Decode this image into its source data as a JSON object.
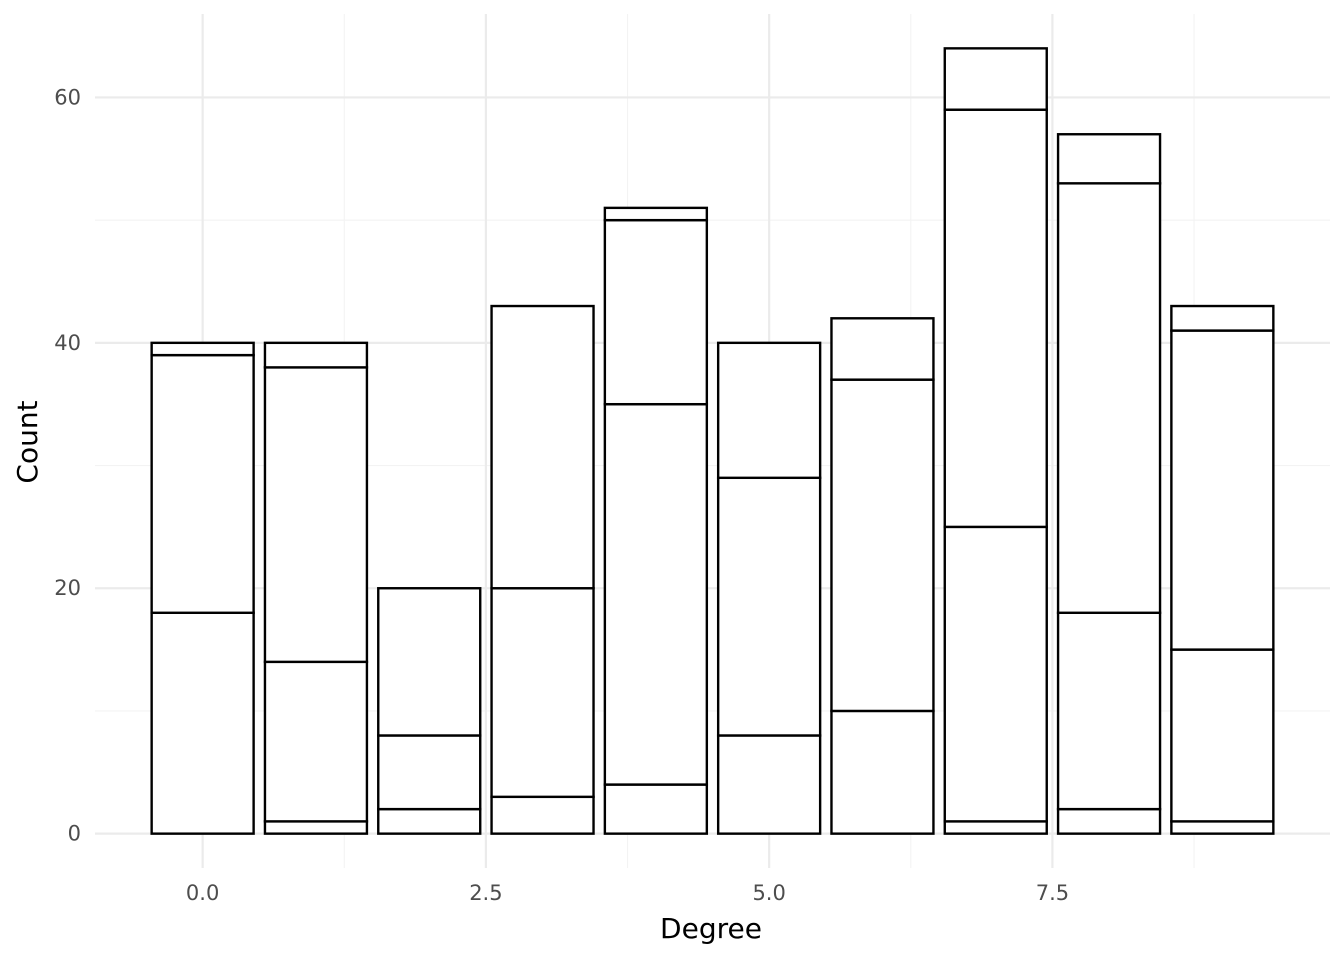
{
  "chart_data": {
    "type": "bar",
    "stacked": true,
    "title": "",
    "xlabel": "Degree",
    "ylabel": "Count",
    "x": [
      0,
      1,
      2,
      3,
      4,
      5,
      6,
      7,
      8,
      9
    ],
    "stack_boundaries": [
      [
        18,
        39,
        40
      ],
      [
        1,
        14,
        38,
        40
      ],
      [
        2,
        8,
        20
      ],
      [
        3,
        20,
        43
      ],
      [
        4,
        35,
        50,
        51
      ],
      [
        8,
        29,
        40
      ],
      [
        10,
        37,
        42
      ],
      [
        1,
        25,
        59,
        64
      ],
      [
        2,
        18,
        53,
        57
      ],
      [
        1,
        15,
        41,
        43
      ]
    ],
    "totals": [
      40,
      40,
      20,
      43,
      51,
      40,
      42,
      64,
      57,
      43
    ],
    "xlim": [
      -0.95,
      9.95
    ],
    "ylim": [
      -2.8,
      66.8
    ],
    "x_ticks": [
      0,
      2.5,
      5,
      7.5
    ],
    "x_tick_labels": [
      "0.0",
      "2.5",
      "5.0",
      "7.5"
    ],
    "y_ticks": [
      0,
      20,
      40,
      60
    ],
    "y_tick_labels": [
      "0",
      "20",
      "40",
      "60"
    ],
    "bar_width": 0.9,
    "grid": true,
    "legend": "none",
    "colors": {
      "bar_fill": "#ffffff",
      "bar_outline": "#000000",
      "grid": "#ebebeb"
    }
  }
}
